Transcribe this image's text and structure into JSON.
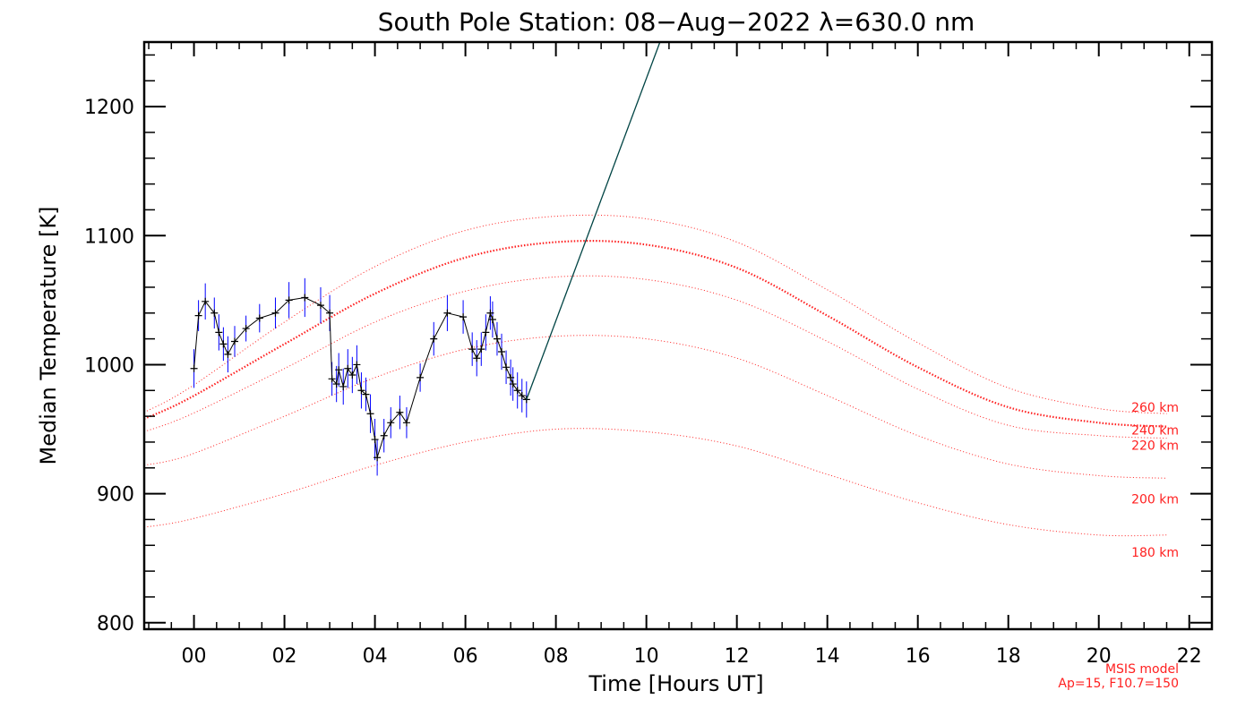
{
  "chart_data": {
    "type": "line",
    "title": "South Pole Station: 08−Aug−2022 λ=630.0 nm",
    "xlabel": "Time [Hours UT]",
    "ylabel": "Median Temperature [K]",
    "xlim": [
      -1.1,
      22.5
    ],
    "ylim": [
      795,
      1250
    ],
    "x_ticks": [
      0,
      2,
      4,
      6,
      8,
      10,
      12,
      14,
      16,
      18,
      20,
      22
    ],
    "x_tick_labels": [
      "00",
      "02",
      "04",
      "06",
      "08",
      "10",
      "12",
      "14",
      "16",
      "18",
      "20",
      "22"
    ],
    "y_ticks": [
      800,
      900,
      1000,
      1100,
      1200
    ],
    "y_tick_labels": [
      "800",
      "900",
      "1000",
      "1100",
      "1200"
    ],
    "grid": false,
    "measured": {
      "color": "#000000",
      "errorbar_color": "#0000ff",
      "points": [
        [
          0.0,
          997,
          15
        ],
        [
          0.1,
          1038,
          12
        ],
        [
          0.25,
          1049,
          14
        ],
        [
          0.45,
          1040,
          12
        ],
        [
          0.55,
          1025,
          14
        ],
        [
          0.65,
          1016,
          13
        ],
        [
          0.75,
          1008,
          14
        ],
        [
          0.9,
          1018,
          12
        ],
        [
          1.15,
          1028,
          10
        ],
        [
          1.45,
          1036,
          11
        ],
        [
          1.8,
          1040,
          12
        ],
        [
          2.1,
          1050,
          14
        ],
        [
          2.45,
          1052,
          15
        ],
        [
          2.8,
          1046,
          14
        ],
        [
          3.0,
          1040,
          14
        ],
        [
          3.05,
          989,
          13
        ],
        [
          3.15,
          985,
          14
        ],
        [
          3.2,
          996,
          13
        ],
        [
          3.3,
          983,
          14
        ],
        [
          3.4,
          997,
          15
        ],
        [
          3.5,
          992,
          14
        ],
        [
          3.6,
          1000,
          15
        ],
        [
          3.7,
          980,
          14
        ],
        [
          3.8,
          977,
          13
        ],
        [
          3.9,
          962,
          15
        ],
        [
          4.0,
          942,
          16
        ],
        [
          4.05,
          928,
          14
        ],
        [
          4.2,
          945,
          13
        ],
        [
          4.35,
          955,
          12
        ],
        [
          4.55,
          963,
          13
        ],
        [
          4.7,
          955,
          12
        ],
        [
          5.0,
          990,
          11
        ],
        [
          5.3,
          1020,
          13
        ],
        [
          5.6,
          1040,
          14
        ],
        [
          5.95,
          1037,
          13
        ],
        [
          6.15,
          1012,
          13
        ],
        [
          6.25,
          1005,
          14
        ],
        [
          6.35,
          1012,
          13
        ],
        [
          6.45,
          1025,
          14
        ],
        [
          6.55,
          1040,
          13
        ],
        [
          6.6,
          1035,
          14
        ],
        [
          6.7,
          1020,
          13
        ],
        [
          6.8,
          1010,
          14
        ],
        [
          6.9,
          998,
          13
        ],
        [
          7.0,
          990,
          14
        ],
        [
          7.05,
          985,
          13
        ],
        [
          7.15,
          980,
          14
        ],
        [
          7.25,
          976,
          13
        ],
        [
          7.35,
          973,
          14
        ]
      ]
    },
    "trend_line": {
      "color": "#004444",
      "points": [
        [
          7.35,
          973
        ],
        [
          10.3,
          1250
        ]
      ]
    },
    "model": {
      "name": "MSIS model",
      "params": "Ap=15, F10.7=150",
      "color": "#ff2020",
      "series": [
        {
          "name": "260 km",
          "values": [
            [
              -1.1,
              963
            ],
            [
              -0.1,
              982
            ],
            [
              2,
              1033
            ],
            [
              4,
              1076
            ],
            [
              6,
              1104
            ],
            [
              8,
              1115
            ],
            [
              10,
              1113
            ],
            [
              12,
              1095
            ],
            [
              14,
              1058
            ],
            [
              16,
              1017
            ],
            [
              18,
              982
            ],
            [
              20,
              966
            ],
            [
              21.5,
              962
            ]
          ]
        },
        {
          "name": "240 km",
          "values": [
            [
              -1.1,
              958
            ],
            [
              -0.1,
              974
            ],
            [
              2,
              1016
            ],
            [
              4,
              1055
            ],
            [
              6,
              1083
            ],
            [
              8,
              1095
            ],
            [
              10,
              1093
            ],
            [
              12,
              1075
            ],
            [
              14,
              1038
            ],
            [
              16,
              998
            ],
            [
              18,
              967
            ],
            [
              20,
              955
            ],
            [
              21.5,
              952
            ]
          ]
        },
        {
          "name": "220 km",
          "values": [
            [
              -1.1,
              948
            ],
            [
              -0.1,
              961
            ],
            [
              2,
              997
            ],
            [
              4,
              1033
            ],
            [
              6,
              1057
            ],
            [
              8,
              1068
            ],
            [
              10,
              1066
            ],
            [
              12,
              1050
            ],
            [
              14,
              1018
            ],
            [
              16,
              981
            ],
            [
              18,
              953
            ],
            [
              20,
              945
            ],
            [
              21.5,
              943
            ]
          ]
        },
        {
          "name": "200 km",
          "values": [
            [
              -1.1,
              922
            ],
            [
              -0.1,
              930
            ],
            [
              2,
              960
            ],
            [
              4,
              990
            ],
            [
              6,
              1012
            ],
            [
              8,
              1022
            ],
            [
              10,
              1020
            ],
            [
              12,
              1005
            ],
            [
              14,
              976
            ],
            [
              16,
              945
            ],
            [
              18,
              923
            ],
            [
              20,
              914
            ],
            [
              21.5,
              912
            ]
          ]
        },
        {
          "name": "180 km",
          "values": [
            [
              -1.1,
              874
            ],
            [
              -0.1,
              880
            ],
            [
              2,
              900
            ],
            [
              4,
              922
            ],
            [
              6,
              940
            ],
            [
              8,
              950
            ],
            [
              10,
              948
            ],
            [
              12,
              937
            ],
            [
              14,
              915
            ],
            [
              16,
              893
            ],
            [
              18,
              876
            ],
            [
              20,
              868
            ],
            [
              21.5,
              868
            ]
          ]
        }
      ]
    }
  }
}
